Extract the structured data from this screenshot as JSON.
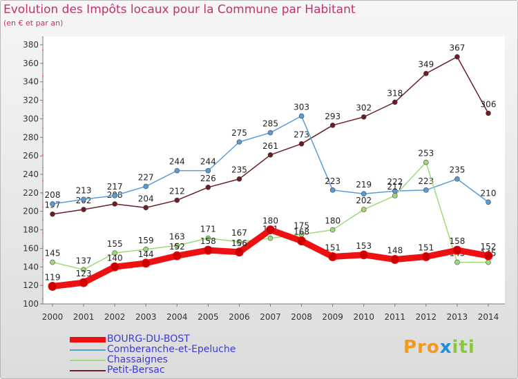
{
  "title": "Evolution des Impôts locaux pour la Commune par Habitant",
  "subtitle": "(en € et par an)",
  "logo": {
    "part1": "Pro",
    "part2": "x",
    "part3": "iti"
  },
  "chart_data": {
    "type": "line",
    "x": [
      2000,
      2001,
      2002,
      2003,
      2004,
      2005,
      2006,
      2007,
      2008,
      2009,
      2010,
      2011,
      2012,
      2013,
      2014
    ],
    "ylim": [
      100,
      380
    ],
    "yticks": [
      100,
      120,
      140,
      160,
      180,
      200,
      220,
      240,
      260,
      280,
      300,
      320,
      340,
      360,
      380
    ],
    "grid": false,
    "legend_position": "bottom",
    "series": [
      {
        "name": "Petit-Bersac",
        "color": "#6b1c24",
        "values": [
          197,
          202,
          208,
          204,
          212,
          226,
          235,
          261,
          273,
          293,
          302,
          318,
          349,
          367,
          306
        ]
      },
      {
        "name": "Comberanche-et-Epeluche",
        "color": "#5b9bd5",
        "values": [
          208,
          213,
          217,
          227,
          244,
          244,
          275,
          285,
          303,
          223,
          219,
          222,
          223,
          235,
          210
        ]
      },
      {
        "name": "Chassaignes",
        "color": "#9ed97a",
        "values": [
          145,
          137,
          155,
          159,
          163,
          171,
          167,
          171,
          175,
          180,
          202,
          217,
          253,
          145,
          145
        ]
      },
      {
        "name": "BOURG-DU-BOST",
        "color": "#ee1111",
        "values": [
          119,
          123,
          140,
          144,
          152,
          158,
          156,
          180,
          168,
          151,
          153,
          148,
          151,
          158,
          152
        ]
      }
    ]
  }
}
